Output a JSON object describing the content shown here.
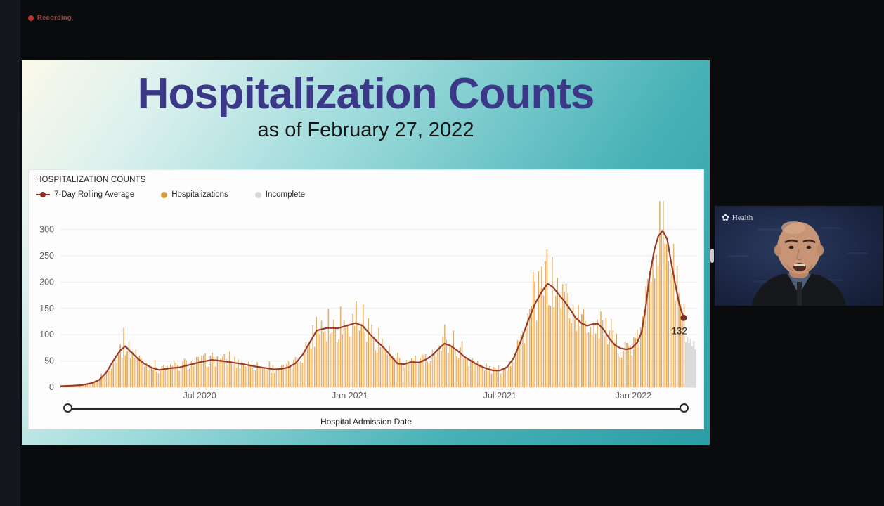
{
  "app": {
    "recording_label": "Recording"
  },
  "slide": {
    "title": "Hospitalization Counts",
    "subtitle": "as of February 27, 2022"
  },
  "chart_data": {
    "type": "bar",
    "title": "HOSPITALIZATION COUNTS",
    "legend": [
      {
        "label": "7-Day Rolling Average",
        "marker": "line-dot",
        "color": "#8b2f24"
      },
      {
        "label": "Hospitalizations",
        "marker": "dot",
        "color": "#d99a3d"
      },
      {
        "label": "Incomplete",
        "marker": "dot",
        "color": "#d6d6d6"
      }
    ],
    "xlabel": "Hospital Admission Date",
    "ylabel": "",
    "ylim": [
      0,
      300
    ],
    "y_ticks": [
      0,
      50,
      100,
      150,
      200,
      250,
      300
    ],
    "x_ticks": [
      {
        "label": "Jul 2020",
        "f": 0.219
      },
      {
        "label": "Jan 2021",
        "f": 0.455
      },
      {
        "label": "Jul 2021",
        "f": 0.691
      },
      {
        "label": "Jan 2022",
        "f": 0.901
      }
    ],
    "rolling_average": [
      [
        0,
        2
      ],
      [
        0.017,
        3
      ],
      [
        0.033,
        4
      ],
      [
        0.05,
        8
      ],
      [
        0.061,
        14
      ],
      [
        0.072,
        28
      ],
      [
        0.083,
        50
      ],
      [
        0.094,
        70
      ],
      [
        0.102,
        78
      ],
      [
        0.11,
        68
      ],
      [
        0.122,
        54
      ],
      [
        0.133,
        44
      ],
      [
        0.144,
        37
      ],
      [
        0.155,
        33
      ],
      [
        0.171,
        36
      ],
      [
        0.188,
        38
      ],
      [
        0.204,
        43
      ],
      [
        0.221,
        48
      ],
      [
        0.238,
        52
      ],
      [
        0.254,
        50
      ],
      [
        0.271,
        47
      ],
      [
        0.287,
        44
      ],
      [
        0.304,
        40
      ],
      [
        0.32,
        37
      ],
      [
        0.337,
        34
      ],
      [
        0.348,
        35
      ],
      [
        0.359,
        38
      ],
      [
        0.37,
        46
      ],
      [
        0.381,
        62
      ],
      [
        0.392,
        85
      ],
      [
        0.403,
        108
      ],
      [
        0.42,
        113
      ],
      [
        0.436,
        112
      ],
      [
        0.453,
        118
      ],
      [
        0.464,
        122
      ],
      [
        0.475,
        117
      ],
      [
        0.486,
        102
      ],
      [
        0.497,
        88
      ],
      [
        0.508,
        76
      ],
      [
        0.519,
        60
      ],
      [
        0.53,
        45
      ],
      [
        0.541,
        44
      ],
      [
        0.552,
        48
      ],
      [
        0.564,
        47
      ],
      [
        0.575,
        53
      ],
      [
        0.586,
        62
      ],
      [
        0.597,
        76
      ],
      [
        0.604,
        83
      ],
      [
        0.613,
        79
      ],
      [
        0.624,
        70
      ],
      [
        0.635,
        58
      ],
      [
        0.646,
        50
      ],
      [
        0.657,
        42
      ],
      [
        0.669,
        36
      ],
      [
        0.68,
        32
      ],
      [
        0.691,
        32
      ],
      [
        0.702,
        38
      ],
      [
        0.713,
        56
      ],
      [
        0.724,
        88
      ],
      [
        0.735,
        125
      ],
      [
        0.746,
        158
      ],
      [
        0.757,
        182
      ],
      [
        0.766,
        197
      ],
      [
        0.775,
        190
      ],
      [
        0.783,
        177
      ],
      [
        0.792,
        164
      ],
      [
        0.801,
        149
      ],
      [
        0.81,
        132
      ],
      [
        0.819,
        122
      ],
      [
        0.828,
        117
      ],
      [
        0.837,
        120
      ],
      [
        0.845,
        121
      ],
      [
        0.854,
        110
      ],
      [
        0.863,
        93
      ],
      [
        0.872,
        80
      ],
      [
        0.881,
        74
      ],
      [
        0.89,
        72
      ],
      [
        0.898,
        74
      ],
      [
        0.907,
        85
      ],
      [
        0.914,
        105
      ],
      [
        0.92,
        150
      ],
      [
        0.927,
        215
      ],
      [
        0.934,
        262
      ],
      [
        0.94,
        287
      ],
      [
        0.947,
        298
      ],
      [
        0.954,
        282
      ],
      [
        0.96,
        240
      ],
      [
        0.967,
        195
      ],
      [
        0.973,
        158
      ],
      [
        0.98,
        132
      ]
    ],
    "end_point": {
      "f": 0.98,
      "value": 132,
      "label": "132"
    },
    "incomplete_bars": [
      [
        0.9835,
        86
      ],
      [
        0.986,
        96
      ],
      [
        0.9885,
        84
      ],
      [
        0.991,
        92
      ],
      [
        0.9935,
        78
      ],
      [
        0.996,
        88
      ],
      [
        0.9985,
        72
      ]
    ],
    "colors": {
      "bars": "#dfa04b",
      "line": "#9a3b28",
      "line_dark": "#7c2b1f",
      "incomplete": "#d9d9d9",
      "axis_text": "#605e5c"
    },
    "grid": "horizontal",
    "legend_position": "top-left"
  },
  "webcam": {
    "logo_text": "Health"
  }
}
